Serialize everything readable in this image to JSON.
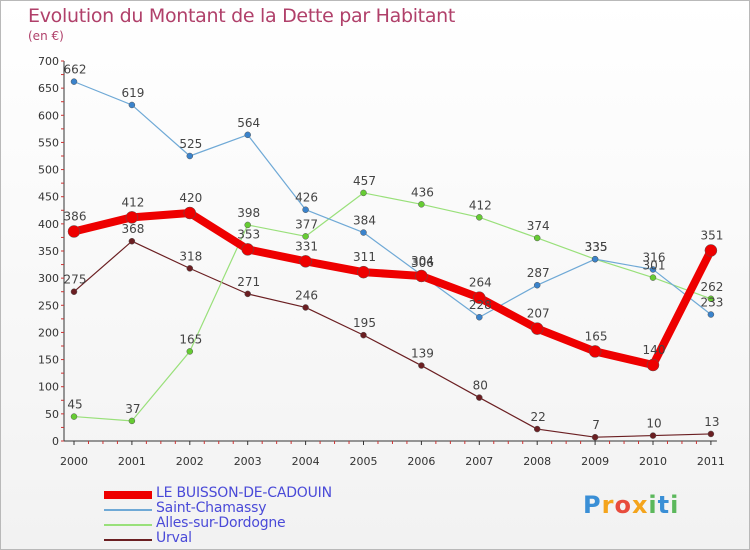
{
  "title": "Evolution du Montant de la Dette par Habitant",
  "subtitle": "(en €)",
  "logo": {
    "text": "Proxiti",
    "letters": [
      "P",
      "r",
      "o",
      "x",
      "i",
      "t",
      "i"
    ],
    "colors": [
      "#3a8fd6",
      "#f4a41c",
      "#e84c3d",
      "#f4a41c",
      "#5cb85c",
      "#3a8fd6",
      "#5cb85c"
    ]
  },
  "chart_data": {
    "type": "line",
    "title": "Evolution du Montant de la Dette par Habitant",
    "ylabel": "(en €)",
    "xlabel": "",
    "ylim": [
      0,
      700
    ],
    "yticks": [
      0,
      50,
      100,
      150,
      200,
      250,
      300,
      350,
      400,
      450,
      500,
      550,
      600,
      650,
      700
    ],
    "categories": [
      "2000",
      "2001",
      "2002",
      "2003",
      "2004",
      "2005",
      "2006",
      "2007",
      "2008",
      "2009",
      "2010",
      "2011"
    ],
    "series": [
      {
        "name": "Urval",
        "color": "#6b1f22",
        "marker": "#6b1f22",
        "width": 1.2,
        "r": 3,
        "values": [
          275,
          368,
          318,
          271,
          246,
          195,
          139,
          80,
          22,
          7,
          10,
          13
        ]
      },
      {
        "name": "Alles-sur-Dordogne",
        "color": "#99e07a",
        "marker": "#66cc33",
        "width": 1.2,
        "r": 3,
        "values": [
          45,
          37,
          165,
          398,
          377,
          457,
          436,
          412,
          374,
          335,
          301,
          262
        ]
      },
      {
        "name": "Saint-Chamassy",
        "color": "#6fa9d6",
        "marker": "#3a83cc",
        "width": 1.2,
        "r": 3,
        "values": [
          662,
          619,
          525,
          564,
          426,
          384,
          306,
          228,
          287,
          335,
          316,
          233
        ]
      },
      {
        "name": "LE BUISSON-DE-CADOUIN",
        "color": "#ee0000",
        "marker": "#ee0000",
        "width": 8,
        "r": 6,
        "values": [
          386,
          412,
          420,
          353,
          331,
          311,
          304,
          264,
          207,
          165,
          140,
          351
        ]
      }
    ],
    "legend": [
      {
        "name": "LE BUISSON-DE-CADOUIN",
        "color": "#ee0000",
        "thickness": 8
      },
      {
        "name": "Saint-Chamassy",
        "color": "#6fa9d6",
        "thickness": 2
      },
      {
        "name": "Alles-sur-Dordogne",
        "color": "#99e07a",
        "thickness": 2
      },
      {
        "name": "Urval",
        "color": "#6b1f22",
        "thickness": 2
      }
    ],
    "legend_position": "bottom-left",
    "grid": false
  }
}
